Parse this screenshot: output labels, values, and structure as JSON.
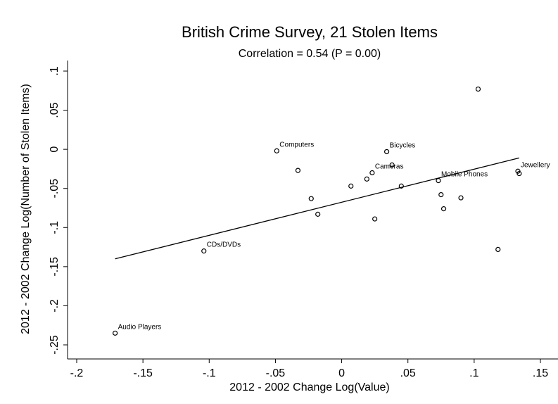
{
  "chart_data": {
    "type": "scatter",
    "title": "British Crime Survey, 21 Stolen Items",
    "subtitle": "Correlation = 0.54 (P = 0.00)",
    "xlabel": "2012 - 2002 Change Log(Value)",
    "ylabel": "2012 - 2002 Change Log(Number of Stolen Items)",
    "xlim": [
      -0.2,
      0.15
    ],
    "ylim": [
      -0.25,
      0.1
    ],
    "x_ticks": [
      -0.2,
      -0.15,
      -0.1,
      -0.05,
      0,
      0.05,
      0.1,
      0.15
    ],
    "x_tick_labels": [
      "-.2",
      "-.15",
      "-.1",
      "-.05",
      "0",
      ".05",
      ".1",
      ".15"
    ],
    "y_ticks": [
      -0.25,
      -0.2,
      -0.15,
      -0.1,
      -0.05,
      0,
      0.05,
      0.1
    ],
    "y_tick_labels": [
      "-.25",
      "-.2",
      "-.15",
      "-.1",
      "-.05",
      "0",
      ".05",
      ".1"
    ],
    "grid": false,
    "points": [
      {
        "x": -0.171,
        "y": -0.235,
        "label": "Audio Players"
      },
      {
        "x": -0.104,
        "y": -0.13,
        "label": "CDs/DVDs"
      },
      {
        "x": -0.049,
        "y": -0.002,
        "label": "Computers"
      },
      {
        "x": -0.033,
        "y": -0.027,
        "label": ""
      },
      {
        "x": -0.023,
        "y": -0.063,
        "label": ""
      },
      {
        "x": -0.018,
        "y": -0.083,
        "label": ""
      },
      {
        "x": 0.007,
        "y": -0.047,
        "label": ""
      },
      {
        "x": 0.019,
        "y": -0.038,
        "label": ""
      },
      {
        "x": 0.023,
        "y": -0.03,
        "label": "Cameras"
      },
      {
        "x": 0.025,
        "y": -0.089,
        "label": ""
      },
      {
        "x": 0.034,
        "y": -0.003,
        "label": "Bicycles"
      },
      {
        "x": 0.038,
        "y": -0.02,
        "label": ""
      },
      {
        "x": 0.045,
        "y": -0.047,
        "label": ""
      },
      {
        "x": 0.073,
        "y": -0.04,
        "label": "Mobile Phones"
      },
      {
        "x": 0.075,
        "y": -0.058,
        "label": ""
      },
      {
        "x": 0.077,
        "y": -0.076,
        "label": ""
      },
      {
        "x": 0.09,
        "y": -0.062,
        "label": ""
      },
      {
        "x": 0.103,
        "y": 0.077,
        "label": ""
      },
      {
        "x": 0.118,
        "y": -0.128,
        "label": ""
      },
      {
        "x": 0.133,
        "y": -0.028,
        "label": "Jewellery"
      },
      {
        "x": 0.134,
        "y": -0.031,
        "label": ""
      }
    ],
    "fit_line": {
      "x": [
        -0.171,
        0.134
      ],
      "y": [
        -0.14,
        -0.011
      ]
    }
  }
}
